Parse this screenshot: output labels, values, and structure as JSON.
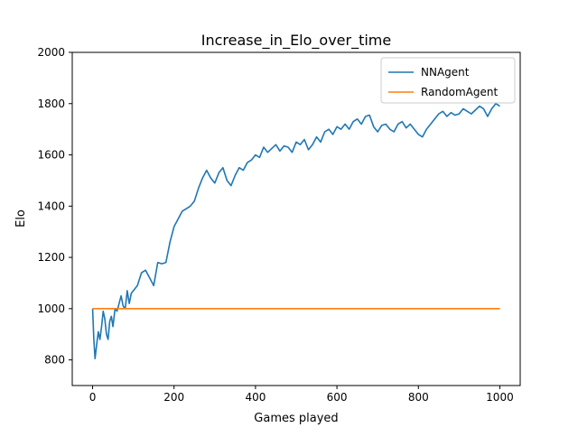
{
  "chart_data": {
    "type": "line",
    "title": "Increase_in_Elo_over_time",
    "xlabel": "Games played",
    "ylabel": "Elo",
    "xlim": [
      -50,
      1050
    ],
    "ylim": [
      700,
      2000
    ],
    "x_ticks": [
      0,
      200,
      400,
      600,
      800,
      1000
    ],
    "y_ticks": [
      800,
      1000,
      1200,
      1400,
      1600,
      1800,
      2000
    ],
    "grid": false,
    "legend_position": "upper right",
    "series": [
      {
        "name": "NNAgent",
        "color": "#1f77b4",
        "x": [
          0,
          3,
          6,
          10,
          14,
          18,
          22,
          26,
          30,
          34,
          38,
          42,
          46,
          50,
          55,
          60,
          65,
          70,
          75,
          80,
          85,
          90,
          95,
          100,
          110,
          120,
          130,
          140,
          150,
          160,
          170,
          180,
          190,
          200,
          210,
          220,
          230,
          240,
          250,
          260,
          270,
          280,
          290,
          300,
          310,
          320,
          330,
          340,
          350,
          360,
          370,
          380,
          390,
          400,
          410,
          420,
          430,
          440,
          450,
          460,
          470,
          480,
          490,
          500,
          510,
          520,
          530,
          540,
          550,
          560,
          570,
          580,
          590,
          600,
          610,
          620,
          630,
          640,
          650,
          660,
          670,
          680,
          690,
          700,
          710,
          720,
          730,
          740,
          750,
          760,
          770,
          780,
          790,
          800,
          810,
          820,
          830,
          840,
          850,
          860,
          870,
          880,
          890,
          900,
          910,
          920,
          930,
          940,
          950,
          960,
          970,
          980,
          990,
          1000
        ],
        "values": [
          1000,
          880,
          805,
          860,
          910,
          880,
          930,
          990,
          960,
          900,
          880,
          950,
          970,
          930,
          1000,
          990,
          1020,
          1050,
          1010,
          1000,
          1070,
          1020,
          1060,
          1070,
          1090,
          1140,
          1150,
          1120,
          1090,
          1180,
          1175,
          1180,
          1260,
          1320,
          1350,
          1380,
          1390,
          1400,
          1420,
          1470,
          1510,
          1540,
          1510,
          1490,
          1530,
          1550,
          1500,
          1480,
          1520,
          1550,
          1540,
          1570,
          1580,
          1600,
          1590,
          1630,
          1610,
          1625,
          1640,
          1615,
          1635,
          1630,
          1610,
          1650,
          1640,
          1660,
          1620,
          1640,
          1670,
          1650,
          1690,
          1700,
          1680,
          1710,
          1700,
          1720,
          1700,
          1730,
          1740,
          1720,
          1750,
          1755,
          1710,
          1690,
          1715,
          1720,
          1700,
          1690,
          1720,
          1730,
          1705,
          1720,
          1700,
          1680,
          1670,
          1700,
          1720,
          1740,
          1760,
          1770,
          1750,
          1765,
          1755,
          1760,
          1780,
          1770,
          1760,
          1775,
          1790,
          1780,
          1750,
          1780,
          1800,
          1790
        ]
      },
      {
        "name": "RandomAgent",
        "color": "#ff7f0e",
        "x": [
          0,
          1000
        ],
        "values": [
          1000,
          1000
        ]
      }
    ]
  }
}
